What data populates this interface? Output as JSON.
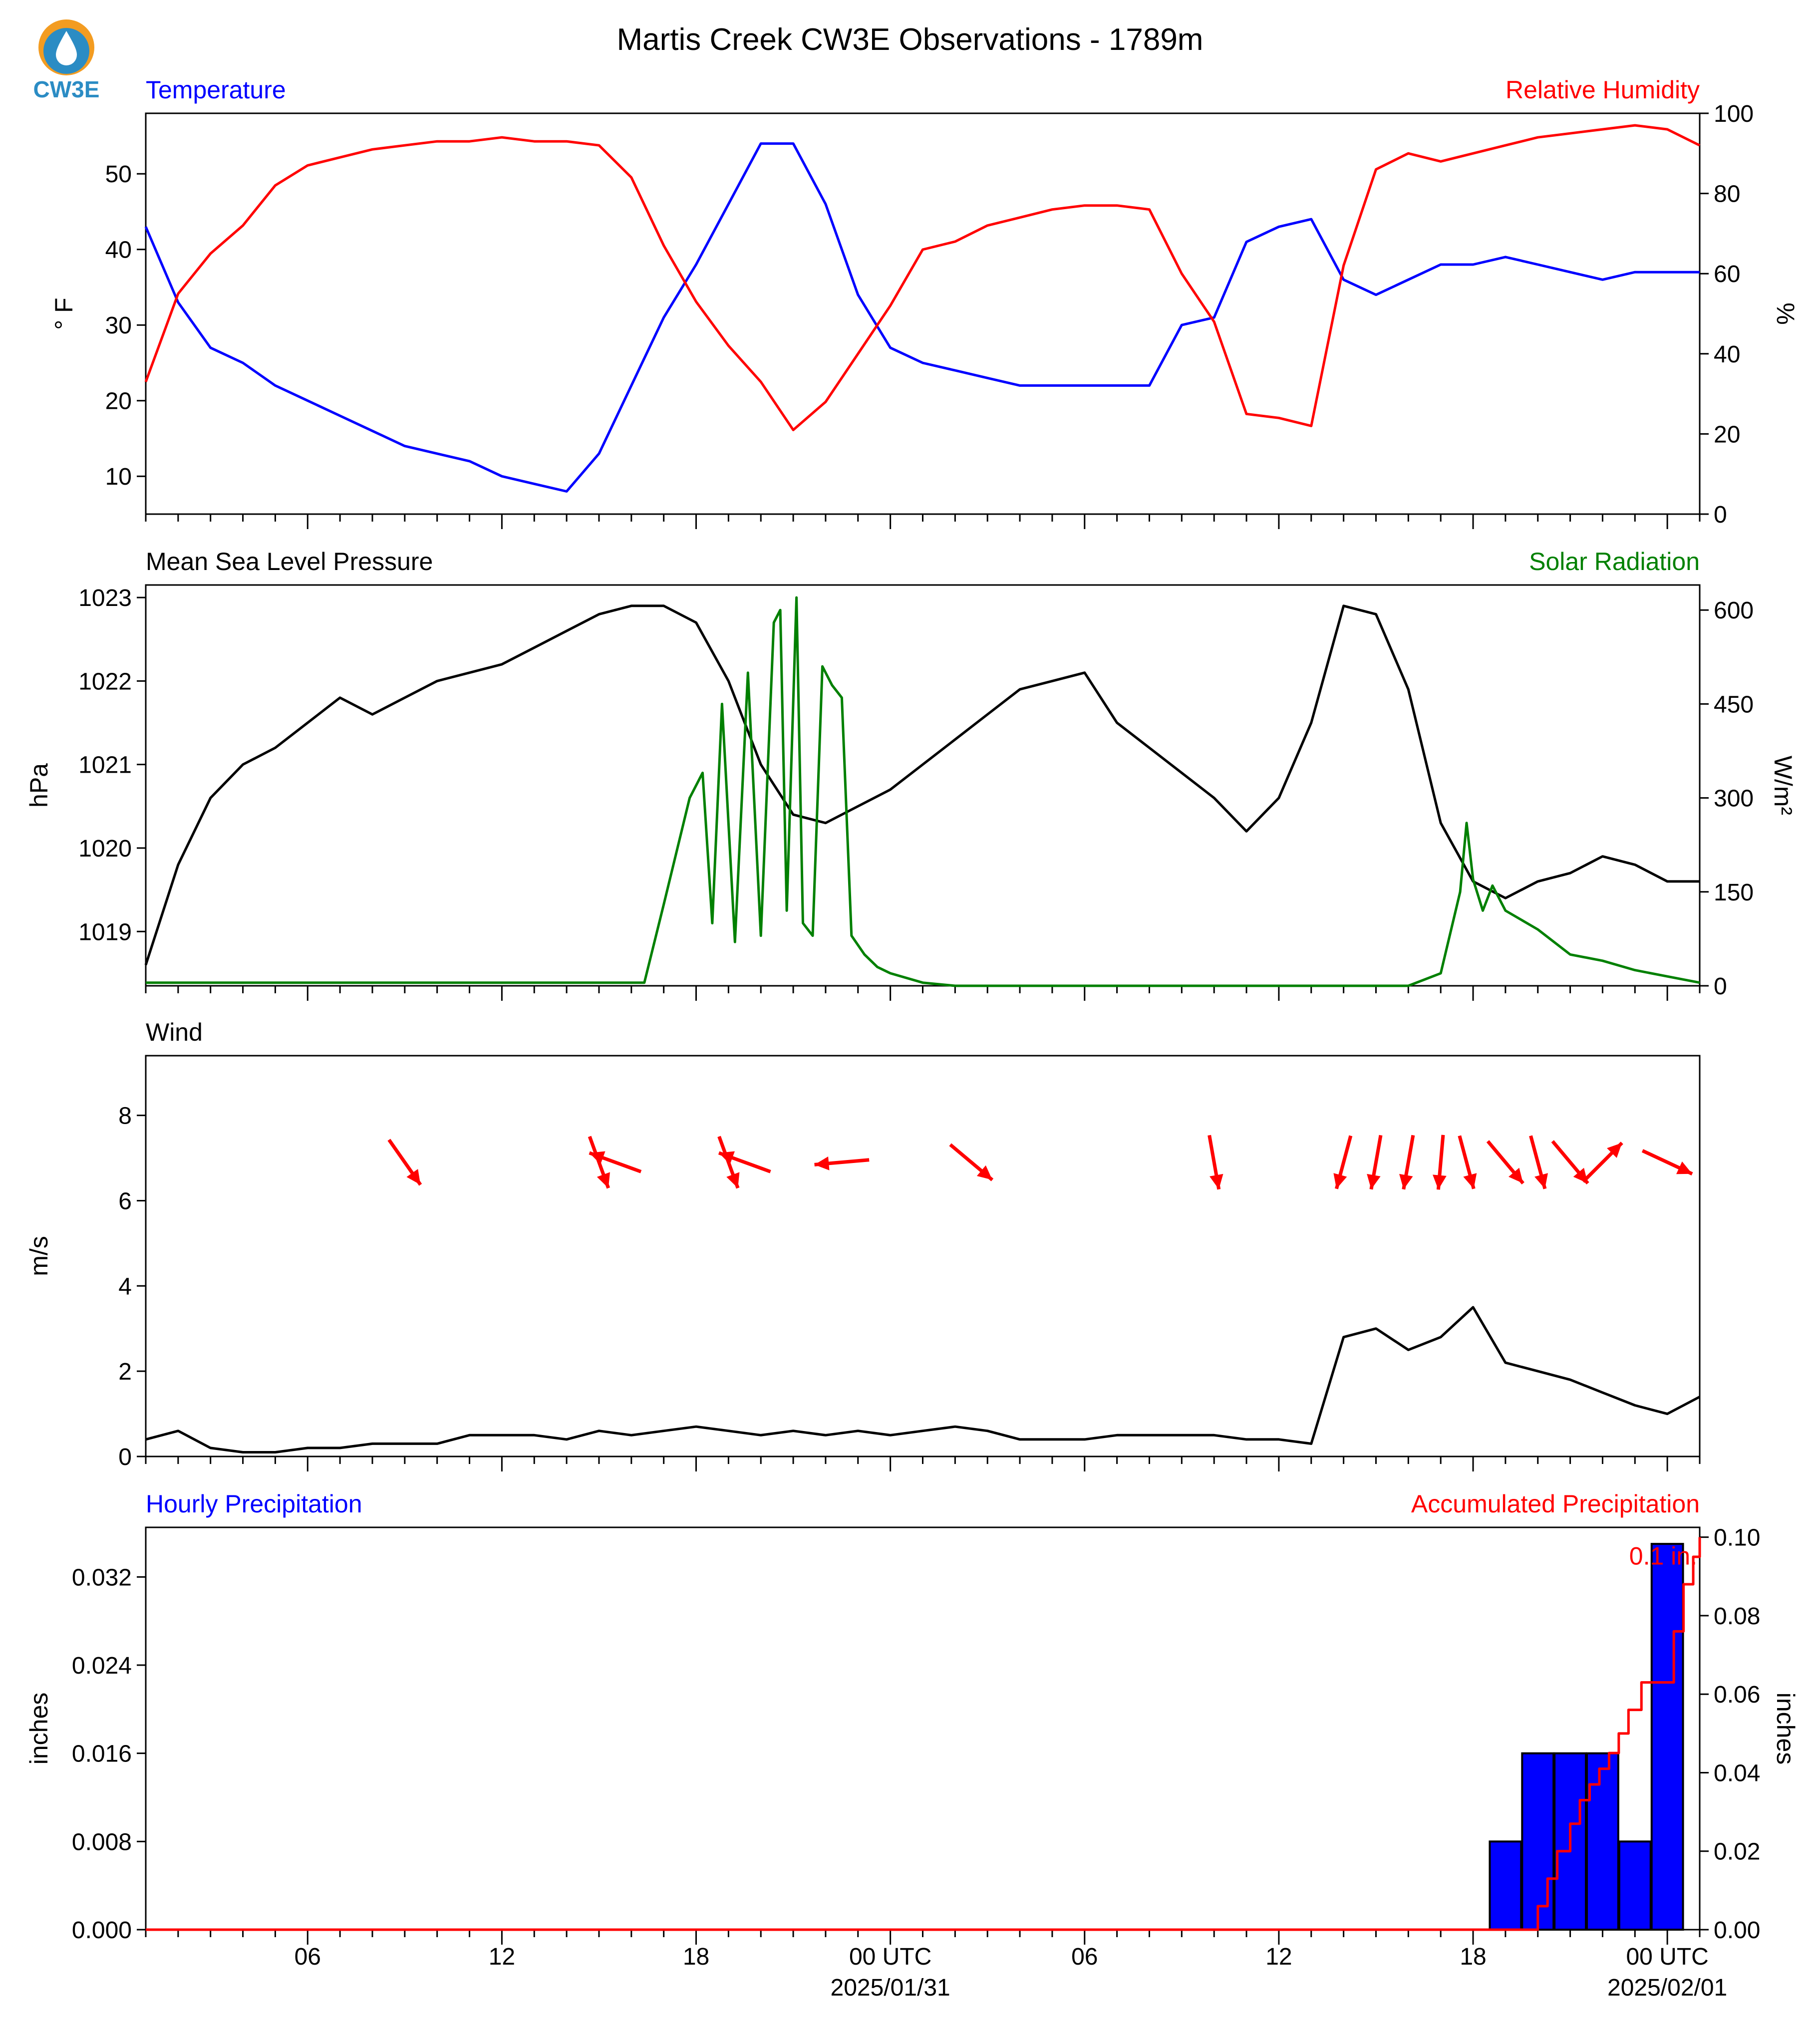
{
  "title": "Martis Creek CW3E Observations - 1789m",
  "logo_text": "CW3E",
  "colors": {
    "blue": "#0000ff",
    "red": "#ff0000",
    "green": "#008000",
    "black": "#000000",
    "logo_orange": "#f39c21",
    "logo_blue": "#2b8cc4"
  },
  "x_axis": {
    "tick_labels": [
      "06",
      "12",
      "18",
      "00 UTC",
      "06",
      "12",
      "18",
      "00 UTC"
    ],
    "tick_hours": [
      6,
      12,
      18,
      24,
      30,
      36,
      42,
      48
    ],
    "date_labels": [
      "2025/01/31",
      "2025/02/01"
    ],
    "range_hours": [
      1,
      49
    ]
  },
  "chart_data": [
    {
      "type": "line",
      "title_left": "Temperature",
      "title_right": "Relative Humidity",
      "ylabel_left": "° F",
      "ylabel_right": "%",
      "ylim_left": [
        5,
        58
      ],
      "ylim_right": [
        0,
        100
      ],
      "yticks_left": [
        10,
        20,
        30,
        40,
        50
      ],
      "yticks_right": [
        0,
        20,
        40,
        60,
        80,
        100
      ],
      "series": [
        {
          "name": "Temperature",
          "axis": "left",
          "color": "#0000ff",
          "x": [
            1,
            2,
            3,
            4,
            5,
            6,
            7,
            8,
            9,
            10,
            11,
            12,
            13,
            14,
            15,
            16,
            17,
            18,
            19,
            20,
            21,
            22,
            23,
            24,
            25,
            26,
            27,
            28,
            29,
            30,
            31,
            32,
            33,
            34,
            35,
            36,
            37,
            38,
            39,
            40,
            41,
            42,
            43,
            44,
            45,
            46,
            47,
            48,
            49
          ],
          "y": [
            43,
            33,
            27,
            25,
            22,
            20,
            18,
            16,
            14,
            13,
            12,
            10,
            9,
            8,
            13,
            22,
            31,
            38,
            46,
            54,
            54,
            46,
            34,
            27,
            25,
            24,
            23,
            22,
            22,
            22,
            22,
            22,
            30,
            31,
            41,
            43,
            44,
            36,
            34,
            36,
            38,
            38,
            39,
            38,
            37,
            36,
            37,
            37,
            37
          ]
        },
        {
          "name": "Relative Humidity",
          "axis": "right",
          "color": "#ff0000",
          "x": [
            1,
            2,
            3,
            4,
            5,
            6,
            7,
            8,
            9,
            10,
            11,
            12,
            13,
            14,
            15,
            16,
            17,
            18,
            19,
            20,
            21,
            22,
            23,
            24,
            25,
            26,
            27,
            28,
            29,
            30,
            31,
            32,
            33,
            34,
            35,
            36,
            37,
            38,
            39,
            40,
            41,
            42,
            43,
            44,
            45,
            46,
            47,
            48,
            49
          ],
          "y": [
            33,
            55,
            65,
            72,
            82,
            87,
            89,
            91,
            92,
            93,
            93,
            94,
            93,
            93,
            92,
            84,
            67,
            53,
            42,
            33,
            21,
            28,
            40,
            52,
            66,
            68,
            72,
            74,
            76,
            77,
            77,
            76,
            60,
            48,
            25,
            24,
            22,
            62,
            86,
            90,
            88,
            90,
            92,
            94,
            95,
            96,
            97,
            96,
            92
          ]
        }
      ]
    },
    {
      "type": "line",
      "title_left": "Mean Sea Level Pressure",
      "title_right": "Solar Radiation",
      "ylabel_left": "hPa",
      "ylabel_right": "W/m²",
      "ylim_left": [
        1018.35,
        1023.15
      ],
      "ylim_right": [
        0,
        640
      ],
      "yticks_left": [
        1019,
        1020,
        1021,
        1022,
        1023
      ],
      "yticks_right": [
        0,
        150,
        300,
        450,
        600
      ],
      "series": [
        {
          "name": "Mean Sea Level Pressure",
          "axis": "left",
          "color": "#000000",
          "x": [
            1,
            2,
            3,
            4,
            5,
            6,
            7,
            8,
            9,
            10,
            11,
            12,
            13,
            14,
            15,
            16,
            17,
            18,
            19,
            20,
            21,
            22,
            23,
            24,
            25,
            26,
            27,
            28,
            29,
            30,
            31,
            32,
            33,
            34,
            35,
            36,
            37,
            38,
            39,
            40,
            41,
            42,
            43,
            44,
            45,
            46,
            47,
            48,
            49
          ],
          "y": [
            1018.6,
            1019.8,
            1020.6,
            1021.0,
            1021.2,
            1021.5,
            1021.8,
            1021.6,
            1021.8,
            1022.0,
            1022.1,
            1022.2,
            1022.4,
            1022.6,
            1022.8,
            1022.9,
            1022.9,
            1022.7,
            1022.0,
            1021.0,
            1020.4,
            1020.3,
            1020.5,
            1020.7,
            1021.0,
            1021.3,
            1021.6,
            1021.9,
            1022.0,
            1022.1,
            1021.5,
            1021.2,
            1020.9,
            1020.6,
            1020.2,
            1020.6,
            1021.5,
            1022.9,
            1022.8,
            1021.9,
            1020.3,
            1019.6,
            1019.4,
            1019.6,
            1019.7,
            1019.9,
            1019.8,
            1019.6,
            1019.6
          ]
        },
        {
          "name": "Solar Radiation",
          "axis": "right",
          "color": "#008000",
          "x": [
            1,
            16.4,
            17,
            17.8,
            18.2,
            18.5,
            18.8,
            19.2,
            19.6,
            20.0,
            20.4,
            20.6,
            20.8,
            21.1,
            21.3,
            21.6,
            21.9,
            22.2,
            22.5,
            22.8,
            23.2,
            23.6,
            24.0,
            25.0,
            26,
            40,
            41,
            41.6,
            41.8,
            42.0,
            42.3,
            42.6,
            43,
            44,
            45,
            46,
            47,
            48,
            49
          ],
          "y": [
            5,
            5,
            130,
            300,
            340,
            100,
            450,
            70,
            500,
            80,
            580,
            600,
            120,
            620,
            100,
            80,
            510,
            480,
            460,
            80,
            50,
            30,
            20,
            5,
            0,
            0,
            20,
            150,
            260,
            170,
            120,
            160,
            120,
            90,
            50,
            40,
            25,
            15,
            5
          ]
        }
      ]
    },
    {
      "type": "line",
      "title_left": "Wind",
      "ylabel_left": "m/s",
      "ylim_left": [
        0,
        9.4
      ],
      "yticks_left": [
        0,
        2,
        4,
        6,
        8
      ],
      "series": [
        {
          "name": "Wind speed",
          "axis": "left",
          "color": "#000000",
          "x": [
            1,
            2,
            3,
            4,
            5,
            6,
            7,
            8,
            9,
            10,
            11,
            12,
            13,
            14,
            15,
            16,
            17,
            18,
            19,
            20,
            21,
            22,
            23,
            24,
            25,
            26,
            27,
            28,
            29,
            30,
            31,
            32,
            33,
            34,
            35,
            36,
            37,
            38,
            39,
            40,
            41,
            42,
            43,
            44,
            45,
            46,
            47,
            48,
            49
          ],
          "y": [
            0.4,
            0.6,
            0.2,
            0.1,
            0.1,
            0.2,
            0.2,
            0.3,
            0.3,
            0.3,
            0.5,
            0.5,
            0.5,
            0.4,
            0.6,
            0.5,
            0.6,
            0.7,
            0.6,
            0.5,
            0.6,
            0.5,
            0.6,
            0.5,
            0.6,
            0.7,
            0.6,
            0.4,
            0.4,
            0.4,
            0.5,
            0.5,
            0.5,
            0.5,
            0.4,
            0.4,
            0.3,
            2.8,
            3.0,
            2.5,
            2.8,
            3.5,
            2.2,
            2.0,
            1.8,
            1.5,
            1.2,
            1.0,
            1.4
          ]
        },
        {
          "name": "Wind direction",
          "kind": "arrows",
          "color": "#ff0000",
          "x": [
            9,
            15,
            15.5,
            19,
            19.5,
            22.5,
            26.5,
            34,
            38,
            39,
            40,
            41,
            41.8,
            43,
            44,
            45,
            46,
            48
          ],
          "dir_deg": [
            145,
            160,
            290,
            160,
            290,
            265,
            130,
            170,
            195,
            190,
            190,
            185,
            165,
            140,
            165,
            140,
            45,
            115
          ]
        }
      ]
    },
    {
      "type": "bar",
      "title_left": "Hourly Precipitation",
      "title_right": "Accumulated Precipitation",
      "ylabel_left": "inches",
      "ylabel_right": "inches",
      "ylim_left": [
        0,
        0.0365
      ],
      "ylim_right": [
        0,
        0.1025
      ],
      "yticks_left": [
        0.0,
        0.008,
        0.016,
        0.024,
        0.032
      ],
      "yticks_right": [
        0.0,
        0.02,
        0.04,
        0.06,
        0.08,
        0.1
      ],
      "annotation": "0.1 in.",
      "series": [
        {
          "name": "Hourly Precipitation",
          "axis": "left",
          "color": "#0000ff",
          "x": [
            43,
            44,
            45,
            46,
            47,
            48
          ],
          "values": [
            0.008,
            0.016,
            0.016,
            0.016,
            0.008,
            0.035
          ]
        },
        {
          "name": "Accumulated Precipitation",
          "axis": "right",
          "color": "#ff0000",
          "x": [
            1,
            43.8,
            44.0,
            44.3,
            44.6,
            45.0,
            45.3,
            45.6,
            45.9,
            46.2,
            46.5,
            46.8,
            47.2,
            48.0,
            48.2,
            48.5,
            48.8,
            49
          ],
          "y": [
            0,
            0,
            0.006,
            0.013,
            0.02,
            0.027,
            0.033,
            0.037,
            0.041,
            0.045,
            0.05,
            0.056,
            0.063,
            0.063,
            0.076,
            0.088,
            0.095,
            0.1
          ]
        }
      ]
    }
  ]
}
